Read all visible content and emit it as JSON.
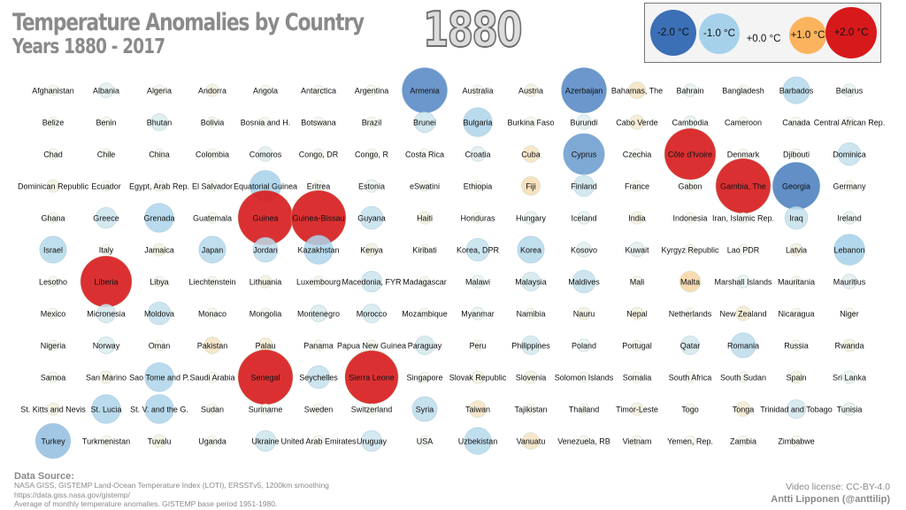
{
  "header": {
    "title": "Temperature Anomalies by Country",
    "subtitle": "Years 1880 - 2017",
    "year": "1880"
  },
  "legend": [
    {
      "label": "-2.0 °C",
      "value": -2.0
    },
    {
      "label": "-1.0 °C",
      "value": -1.0
    },
    {
      "label": "+0.0 °C",
      "value": 0.0
    },
    {
      "label": "+1.0 °C",
      "value": 1.0
    },
    {
      "label": "+2.0 °C",
      "value": 2.0
    }
  ],
  "colors": {
    "cold_strong": "#3b6fb6",
    "cold": "#a6d1ea",
    "neutral": "#f2f7ee",
    "warm": "#fbb35d",
    "warm_strong": "#d7191c"
  },
  "footer": {
    "source_title": "Data Source:",
    "source_line1": "NASA GISS, GISTEMP Land-Ocean Temperature Index (LOTI), ERSSTv5, 1200km smoothing",
    "source_line2": "https://data.giss.nasa.gov/gistemp/",
    "source_line3": "Average of monthly temperature anomalies. GISTEMP base period 1951-1980.",
    "license": "Video license: CC-BY-4.0",
    "author": "Antti Lipponen (@anttilip)"
  },
  "chart_data": {
    "type": "scatter",
    "year": "1880",
    "units": "°C",
    "countries": [
      {
        "name": "Afghanistan",
        "value": 0.0
      },
      {
        "name": "Albania",
        "value": -0.2
      },
      {
        "name": "Algeria",
        "value": 0.0
      },
      {
        "name": "Andorra",
        "value": 0.1
      },
      {
        "name": "Angola",
        "value": 0.0
      },
      {
        "name": "Antarctica",
        "value": 0.0
      },
      {
        "name": "Argentina",
        "value": 0.0
      },
      {
        "name": "Armenia",
        "value": -1.7
      },
      {
        "name": "Australia",
        "value": 0.0
      },
      {
        "name": "Austria",
        "value": 0.1
      },
      {
        "name": "Azerbaijan",
        "value": -1.7
      },
      {
        "name": "Bahamas, The",
        "value": 0.3
      },
      {
        "name": "Bahrain",
        "value": -0.1
      },
      {
        "name": "Bangladesh",
        "value": 0.0
      },
      {
        "name": "Barbados",
        "value": -0.8
      },
      {
        "name": "Belarus",
        "value": -0.1
      },
      {
        "name": "Belize",
        "value": 0.0
      },
      {
        "name": "Benin",
        "value": 0.0
      },
      {
        "name": "Bhutan",
        "value": -0.3
      },
      {
        "name": "Bolivia",
        "value": 0.0
      },
      {
        "name": "Bosnia and H.",
        "value": 0.0
      },
      {
        "name": "Botswana",
        "value": 0.0
      },
      {
        "name": "Brazil",
        "value": 0.0
      },
      {
        "name": "Brunei",
        "value": -0.5
      },
      {
        "name": "Bulgaria",
        "value": -0.9
      },
      {
        "name": "Burkina Faso",
        "value": 0.0
      },
      {
        "name": "Burundi",
        "value": -0.2
      },
      {
        "name": "Cabo Verde",
        "value": 0.2
      },
      {
        "name": "Cambodia",
        "value": -0.1
      },
      {
        "name": "Cameroon",
        "value": 0.0
      },
      {
        "name": "Canada",
        "value": 0.0
      },
      {
        "name": "Central African Rep.",
        "value": 0.0
      },
      {
        "name": "Chad",
        "value": 0.0
      },
      {
        "name": "Chile",
        "value": 0.0
      },
      {
        "name": "China",
        "value": 0.0
      },
      {
        "name": "Colombia",
        "value": 0.0
      },
      {
        "name": "Comoros",
        "value": -0.2
      },
      {
        "name": "Congo, DR",
        "value": 0.0
      },
      {
        "name": "Congo, R",
        "value": 0.0
      },
      {
        "name": "Costa Rica",
        "value": 0.0
      },
      {
        "name": "Croatia",
        "value": -0.2
      },
      {
        "name": "Cuba",
        "value": 0.3
      },
      {
        "name": "Cyprus",
        "value": -1.5
      },
      {
        "name": "Czechia",
        "value": 0.0
      },
      {
        "name": "Côte d'Ivoire",
        "value": 2.0
      },
      {
        "name": "Denmark",
        "value": 0.0
      },
      {
        "name": "Djibouti",
        "value": 0.0
      },
      {
        "name": "Dominica",
        "value": -0.6
      },
      {
        "name": "Dominican Republic",
        "value": 0.1
      },
      {
        "name": "Ecuador",
        "value": 0.0
      },
      {
        "name": "Egypt, Arab Rep.",
        "value": 0.0
      },
      {
        "name": "El Salvador",
        "value": 0.0
      },
      {
        "name": "Equatorial Guinea",
        "value": -1.0
      },
      {
        "name": "Eritrea",
        "value": 0.0
      },
      {
        "name": "Estonia",
        "value": -0.1
      },
      {
        "name": "eSwatini",
        "value": 0.0
      },
      {
        "name": "Ethiopia",
        "value": 0.0
      },
      {
        "name": "Fiji",
        "value": 0.4
      },
      {
        "name": "Finland",
        "value": -0.5
      },
      {
        "name": "France",
        "value": 0.0
      },
      {
        "name": "Gabon",
        "value": 0.0
      },
      {
        "name": "Gambia, The",
        "value": 2.2
      },
      {
        "name": "Georgia",
        "value": -1.8
      },
      {
        "name": "Germany",
        "value": 0.0
      },
      {
        "name": "Ghana",
        "value": 0.0
      },
      {
        "name": "Greece",
        "value": -0.5
      },
      {
        "name": "Grenada",
        "value": -0.9
      },
      {
        "name": "Guatemala",
        "value": 0.0
      },
      {
        "name": "Guinea",
        "value": 2.3
      },
      {
        "name": "Guinea-Bissau",
        "value": 2.3
      },
      {
        "name": "Guyana",
        "value": -0.6
      },
      {
        "name": "Haiti",
        "value": 0.1
      },
      {
        "name": "Honduras",
        "value": 0.0
      },
      {
        "name": "Hungary",
        "value": -0.1
      },
      {
        "name": "Iceland",
        "value": -0.1
      },
      {
        "name": "India",
        "value": 0.1
      },
      {
        "name": "Indonesia",
        "value": 0.0
      },
      {
        "name": "Iran, Islamic Rep.",
        "value": 0.0
      },
      {
        "name": "Iraq",
        "value": -0.6
      },
      {
        "name": "Ireland",
        "value": -0.1
      },
      {
        "name": "Israel",
        "value": -0.8
      },
      {
        "name": "Italy",
        "value": 0.0
      },
      {
        "name": "Jamaica",
        "value": 0.1
      },
      {
        "name": "Japan",
        "value": -0.8
      },
      {
        "name": "Jordan",
        "value": -0.7
      },
      {
        "name": "Kazakhstan",
        "value": -0.9
      },
      {
        "name": "Kenya",
        "value": 0.1
      },
      {
        "name": "Kiribati",
        "value": 0.0
      },
      {
        "name": "Korea, DPR",
        "value": -0.6
      },
      {
        "name": "Korea",
        "value": -0.8
      },
      {
        "name": "Kosovo",
        "value": -0.2
      },
      {
        "name": "Kuwait",
        "value": -0.2
      },
      {
        "name": "Kyrgyz Republic",
        "value": 0.0
      },
      {
        "name": "Lao PDR",
        "value": 0.0
      },
      {
        "name": "Latvia",
        "value": 0.1
      },
      {
        "name": "Lebanon",
        "value": -1.0
      },
      {
        "name": "Lesotho",
        "value": 0.0
      },
      {
        "name": "Liberia",
        "value": 2.0
      },
      {
        "name": "Libya",
        "value": 0.0
      },
      {
        "name": "Liechtenstein",
        "value": 0.0
      },
      {
        "name": "Lithuania",
        "value": 0.1
      },
      {
        "name": "Luxembourg",
        "value": 0.0
      },
      {
        "name": "Macedonia, FYR",
        "value": -0.5
      },
      {
        "name": "Madagascar",
        "value": 0.0
      },
      {
        "name": "Malawi",
        "value": -0.1
      },
      {
        "name": "Malaysia",
        "value": -0.4
      },
      {
        "name": "Maldives",
        "value": -0.6
      },
      {
        "name": "Mali",
        "value": 0.0
      },
      {
        "name": "Malta",
        "value": 0.5
      },
      {
        "name": "Marshall Islands",
        "value": -0.1
      },
      {
        "name": "Mauritania",
        "value": 0.0
      },
      {
        "name": "Mauritius",
        "value": -0.2
      },
      {
        "name": "Mexico",
        "value": 0.0
      },
      {
        "name": "Micronesia",
        "value": -0.4
      },
      {
        "name": "Moldova",
        "value": -0.6
      },
      {
        "name": "Monaco",
        "value": 0.0
      },
      {
        "name": "Mongolia",
        "value": 0.0
      },
      {
        "name": "Montenegro",
        "value": -0.3
      },
      {
        "name": "Morocco",
        "value": -0.4
      },
      {
        "name": "Mozambique",
        "value": 0.0
      },
      {
        "name": "Myanmar",
        "value": -0.1
      },
      {
        "name": "Namibia",
        "value": 0.0
      },
      {
        "name": "Nauru",
        "value": 0.1
      },
      {
        "name": "Nepal",
        "value": 0.1
      },
      {
        "name": "Netherlands",
        "value": 0.0
      },
      {
        "name": "New Zealand",
        "value": 0.2
      },
      {
        "name": "Nicaragua",
        "value": 0.0
      },
      {
        "name": "Niger",
        "value": 0.0
      },
      {
        "name": "Nigeria",
        "value": 0.0
      },
      {
        "name": "Norway",
        "value": -0.3
      },
      {
        "name": "Oman",
        "value": 0.0
      },
      {
        "name": "Pakistan",
        "value": 0.3
      },
      {
        "name": "Palau",
        "value": 0.2
      },
      {
        "name": "Panama",
        "value": 0.0
      },
      {
        "name": "Papua New Guinea",
        "value": 0.0
      },
      {
        "name": "Paraguay",
        "value": -0.4
      },
      {
        "name": "Peru",
        "value": 0.0
      },
      {
        "name": "Philippines",
        "value": -0.4
      },
      {
        "name": "Poland",
        "value": -0.1
      },
      {
        "name": "Portugal",
        "value": 0.0
      },
      {
        "name": "Qatar",
        "value": -0.4
      },
      {
        "name": "Romania",
        "value": -0.7
      },
      {
        "name": "Russia",
        "value": 0.0
      },
      {
        "name": "Rwanda",
        "value": 0.1
      },
      {
        "name": "Samoa",
        "value": 0.0
      },
      {
        "name": "San Marino",
        "value": 0.1
      },
      {
        "name": "Sao Tome and P.",
        "value": -0.9
      },
      {
        "name": "Saudi Arabia",
        "value": 0.0
      },
      {
        "name": "Senegal",
        "value": 2.3
      },
      {
        "name": "Seychelles",
        "value": -0.6
      },
      {
        "name": "Sierra Leone",
        "value": 2.1
      },
      {
        "name": "Singapore",
        "value": 0.0
      },
      {
        "name": "Slovak Republic",
        "value": 0.1
      },
      {
        "name": "Slovenia",
        "value": 0.1
      },
      {
        "name": "Solomon Islands",
        "value": 0.0
      },
      {
        "name": "Somalia",
        "value": 0.0
      },
      {
        "name": "South Africa",
        "value": 0.0
      },
      {
        "name": "South Sudan",
        "value": 0.0
      },
      {
        "name": "Spain",
        "value": 0.1
      },
      {
        "name": "Sri Lanka",
        "value": -0.1
      },
      {
        "name": "St. Kitts and Nevis",
        "value": 0.1
      },
      {
        "name": "St. Lucia",
        "value": -0.9
      },
      {
        "name": "St. V. and the G.",
        "value": -0.9
      },
      {
        "name": "Sudan",
        "value": 0.0
      },
      {
        "name": "Suriname",
        "value": 0.0
      },
      {
        "name": "Sweden",
        "value": 0.0
      },
      {
        "name": "Switzerland",
        "value": 0.0
      },
      {
        "name": "Syria",
        "value": -0.7
      },
      {
        "name": "Taiwan",
        "value": 0.3
      },
      {
        "name": "Tajikistan",
        "value": 0.0
      },
      {
        "name": "Thailand",
        "value": 0.0
      },
      {
        "name": "Timor-Leste",
        "value": 0.1
      },
      {
        "name": "Togo",
        "value": 0.0
      },
      {
        "name": "Tonga",
        "value": 0.2
      },
      {
        "name": "Trinidad and Tobago",
        "value": -0.4
      },
      {
        "name": "Tunisia",
        "value": -0.1
      },
      {
        "name": "Turkey",
        "value": -1.2
      },
      {
        "name": "Turkmenistan",
        "value": 0.0
      },
      {
        "name": "Tuvalu",
        "value": 0.1
      },
      {
        "name": "Uganda",
        "value": 0.0
      },
      {
        "name": "Ukraine",
        "value": -0.5
      },
      {
        "name": "United Arab Emirates",
        "value": 0.0
      },
      {
        "name": "Uruguay",
        "value": -0.5
      },
      {
        "name": "USA",
        "value": 0.0
      },
      {
        "name": "Uzbekistan",
        "value": -0.8
      },
      {
        "name": "Vanuatu",
        "value": 0.3
      },
      {
        "name": "Venezuela, RB",
        "value": 0.0
      },
      {
        "name": "Vietnam",
        "value": 0.0
      },
      {
        "name": "Yemen, Rep.",
        "value": 0.0
      },
      {
        "name": "Zambia",
        "value": 0.0
      },
      {
        "name": "Zimbabwe",
        "value": 0.0
      }
    ]
  }
}
